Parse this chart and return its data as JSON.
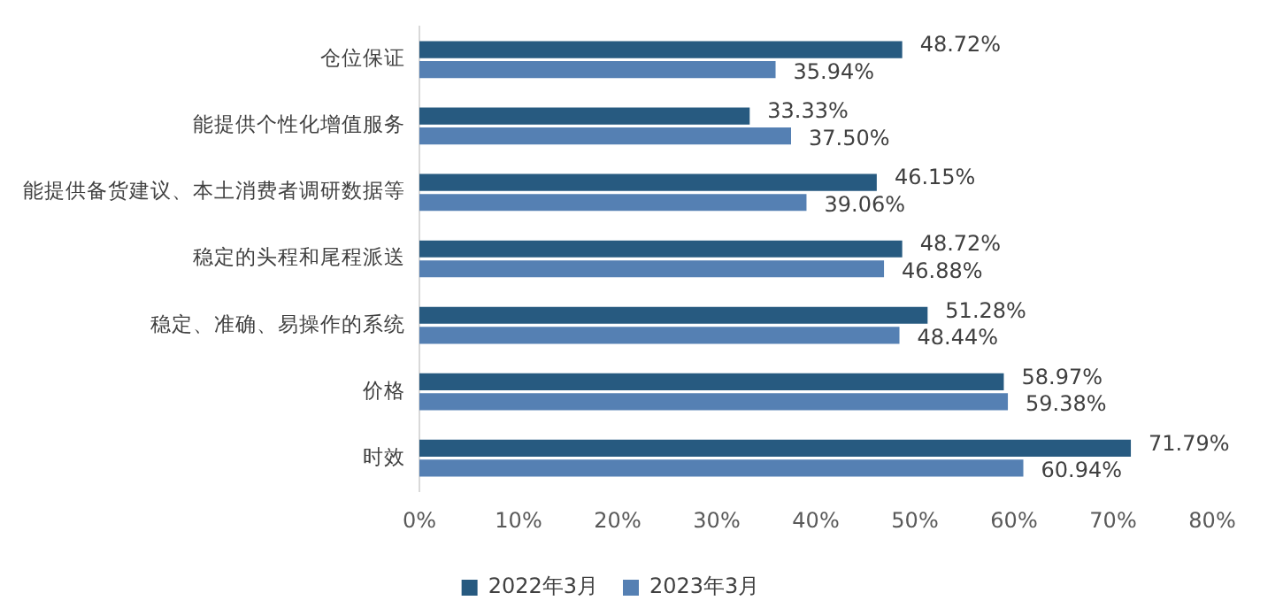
{
  "chart_data": {
    "type": "bar",
    "orientation": "horizontal",
    "categories": [
      "仓位保证",
      "能提供个性化增值服务",
      "能提供备货建议、本土消费者调研数据等",
      "稳定的头程和尾程派送",
      "稳定、准确、易操作的系统",
      "价格",
      "时效"
    ],
    "series": [
      {
        "name": "2022年3月",
        "color": "#275a80",
        "values": [
          48.72,
          33.33,
          46.15,
          48.72,
          51.28,
          58.97,
          71.79
        ],
        "value_labels": [
          "48.72%",
          "33.33%",
          "46.15%",
          "48.72%",
          "51.28%",
          "58.97%",
          "71.79%"
        ]
      },
      {
        "name": "2023年3月",
        "color": "#5580b3",
        "values": [
          35.94,
          37.5,
          39.06,
          46.88,
          48.44,
          59.38,
          60.94
        ],
        "value_labels": [
          "35.94%",
          "37.50%",
          "39.06%",
          "46.88%",
          "48.44%",
          "59.38%",
          "60.94%"
        ]
      }
    ],
    "xlim": [
      0,
      80
    ],
    "xticks": [
      {
        "value": 0,
        "label": "0%"
      },
      {
        "value": 10,
        "label": "10%"
      },
      {
        "value": 20,
        "label": "20%"
      },
      {
        "value": 30,
        "label": "30%"
      },
      {
        "value": 40,
        "label": "40%"
      },
      {
        "value": 50,
        "label": "50%"
      },
      {
        "value": 60,
        "label": "60%"
      },
      {
        "value": 70,
        "label": "70%"
      },
      {
        "value": 80,
        "label": "80%"
      }
    ],
    "grid": false,
    "legend": "bottom"
  }
}
